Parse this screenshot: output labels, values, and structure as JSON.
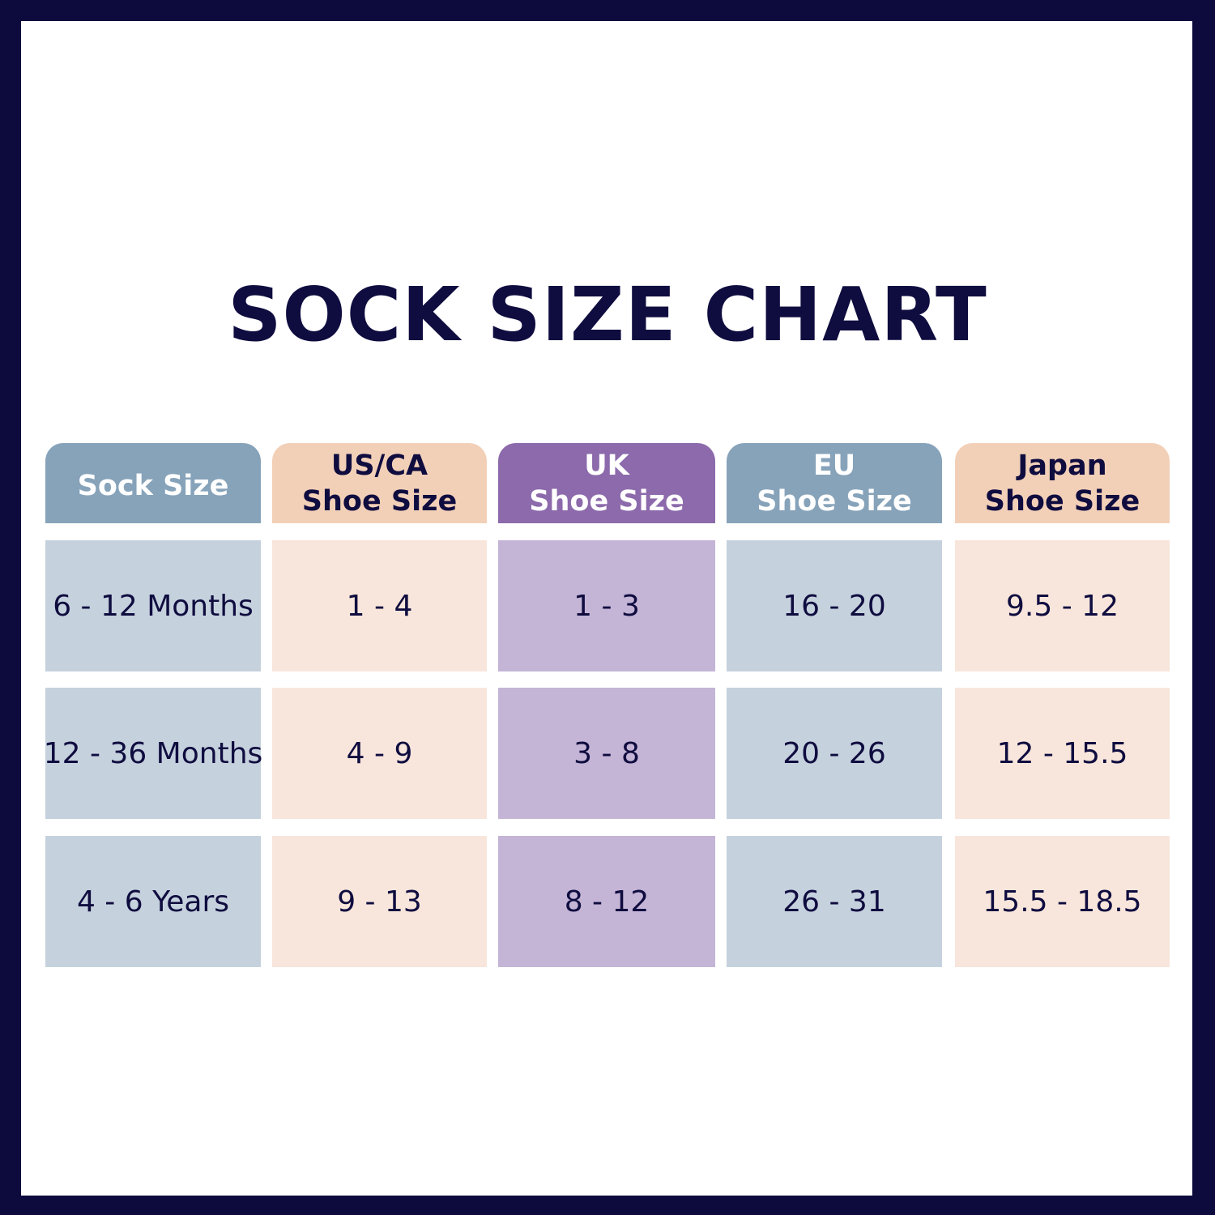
{
  "title": "SOCK SIZE CHART",
  "colors": {
    "border": "#0d0a3d",
    "text": "#0f0c3f",
    "blue_header": "#87a3ba",
    "blue_cell": "#c5d1dd",
    "peach_header": "#f2d0b8",
    "peach_cell": "#f8e6dc",
    "purple_header": "#8c6aab",
    "purple_cell": "#c4b4d6"
  },
  "headers": [
    {
      "line1": "Sock Size",
      "line2": ""
    },
    {
      "line1": "US/CA",
      "line2": "Shoe Size"
    },
    {
      "line1": "UK",
      "line2": "Shoe Size"
    },
    {
      "line1": "EU",
      "line2": "Shoe Size"
    },
    {
      "line1": "Japan",
      "line2": "Shoe Size"
    }
  ],
  "rows": [
    [
      "6 - 12 Months",
      "1 - 4",
      "1 - 3",
      "16 - 20",
      "9.5 - 12"
    ],
    [
      "12 - 36 Months",
      "4 - 9",
      "3 - 8",
      "20 - 26",
      "12 - 15.5"
    ],
    [
      "4 - 6 Years",
      "9 - 13",
      "8 - 12",
      "26 - 31",
      "15.5 - 18.5"
    ]
  ]
}
